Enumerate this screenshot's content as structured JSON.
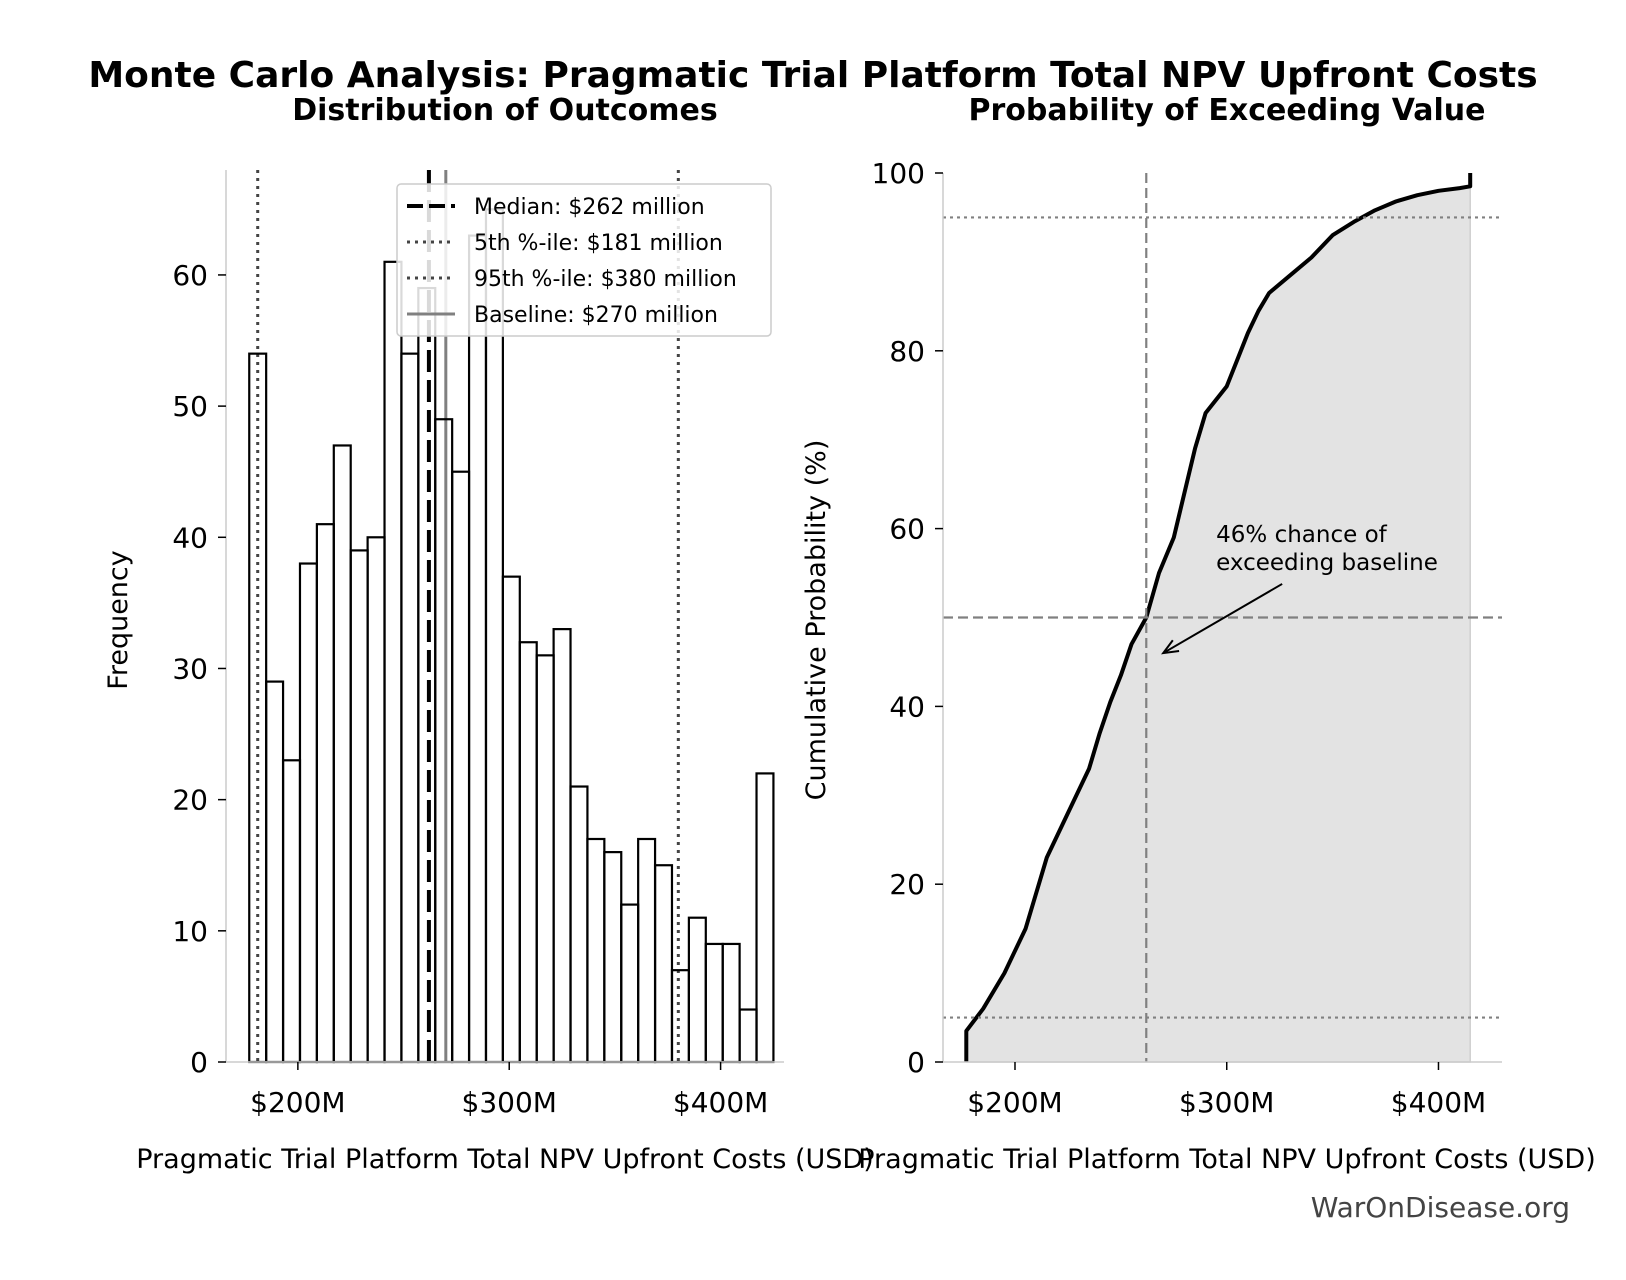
{
  "figure": {
    "suptitle": "Monte Carlo Analysis: Pragmatic Trial Platform Total NPV Upfront Costs",
    "watermark": "WarOnDisease.org"
  },
  "chart_data": [
    {
      "type": "bar",
      "title": "Distribution of Outcomes",
      "xlabel": "Pragmatic Trial Platform Total NPV Upfront Costs (USD)",
      "ylabel": "Frequency",
      "xlim": [
        166,
        430
      ],
      "ylim": [
        0,
        68
      ],
      "x_ticks": [
        200,
        300,
        400
      ],
      "x_tick_labels": [
        "$200M",
        "$300M",
        "$400M"
      ],
      "y_ticks": [
        0,
        10,
        20,
        30,
        40,
        50,
        60
      ],
      "y_tick_labels": [
        "0",
        "10",
        "20",
        "30",
        "40",
        "50",
        "60"
      ],
      "bin_start": 177,
      "bin_width": 8,
      "values": [
        54,
        29,
        23,
        38,
        41,
        47,
        39,
        40,
        61,
        54,
        59,
        49,
        45,
        63,
        65,
        37,
        32,
        31,
        33,
        21,
        17,
        16,
        12,
        17,
        15,
        7,
        11,
        9,
        9,
        4,
        22
      ],
      "reference_lines": [
        {
          "label": "Median: $262 million",
          "x": 262,
          "style": "dashed",
          "color": "#000000"
        },
        {
          "label": "5th %-ile: $181 million",
          "x": 181,
          "style": "dotted",
          "color": "#444444"
        },
        {
          "label": "95th %-ile: $380 million",
          "x": 380,
          "style": "dotted",
          "color": "#444444"
        },
        {
          "label": "Baseline: $270 million",
          "x": 270,
          "style": "solid",
          "color": "#808080"
        }
      ],
      "legend_position": "upper-right",
      "grid": false
    },
    {
      "type": "area",
      "title": "Probability of Exceeding Value",
      "xlabel": "Pragmatic Trial Platform Total NPV Upfront Costs (USD)",
      "ylabel": "Cumulative Probability (%)",
      "xlim": [
        166,
        430
      ],
      "ylim": [
        0,
        100
      ],
      "x_ticks": [
        200,
        300,
        400
      ],
      "x_tick_labels": [
        "$200M",
        "$300M",
        "$400M"
      ],
      "y_ticks": [
        0,
        20,
        40,
        60,
        80,
        100
      ],
      "y_tick_labels": [
        "0",
        "20",
        "40",
        "60",
        "80",
        "100"
      ],
      "x": [
        177,
        177,
        185,
        195,
        205,
        210,
        215,
        225,
        235,
        240,
        245,
        250,
        255,
        262,
        268,
        275,
        280,
        285,
        290,
        300,
        305,
        310,
        315,
        320,
        330,
        340,
        350,
        360,
        370,
        380,
        390,
        400,
        410,
        415,
        415
      ],
      "y": [
        0,
        3.5,
        6,
        10,
        15,
        19,
        23,
        28,
        33,
        37,
        40.5,
        43.5,
        47,
        50,
        55,
        59,
        64,
        69,
        73,
        76,
        79,
        82,
        84.5,
        86.5,
        88.5,
        90.5,
        93,
        94.5,
        95.8,
        96.8,
        97.5,
        98,
        98.3,
        98.5,
        100
      ],
      "reference_lines": [
        {
          "axis": "x",
          "value": 262,
          "style": "dashed",
          "color": "#808080"
        },
        {
          "axis": "y",
          "value": 50,
          "style": "dashed",
          "color": "#808080"
        },
        {
          "axis": "y",
          "value": 5,
          "style": "dotted",
          "color": "#808080"
        },
        {
          "axis": "y",
          "value": 95,
          "style": "dotted",
          "color": "#808080"
        }
      ],
      "annotation": {
        "lines": [
          "46% chance of",
          "exceeding baseline"
        ],
        "text_at": [
          295,
          58.5
        ],
        "arrow_to": [
          270,
          46
        ]
      },
      "fill_color": "#e3e3e3",
      "grid": false
    }
  ]
}
